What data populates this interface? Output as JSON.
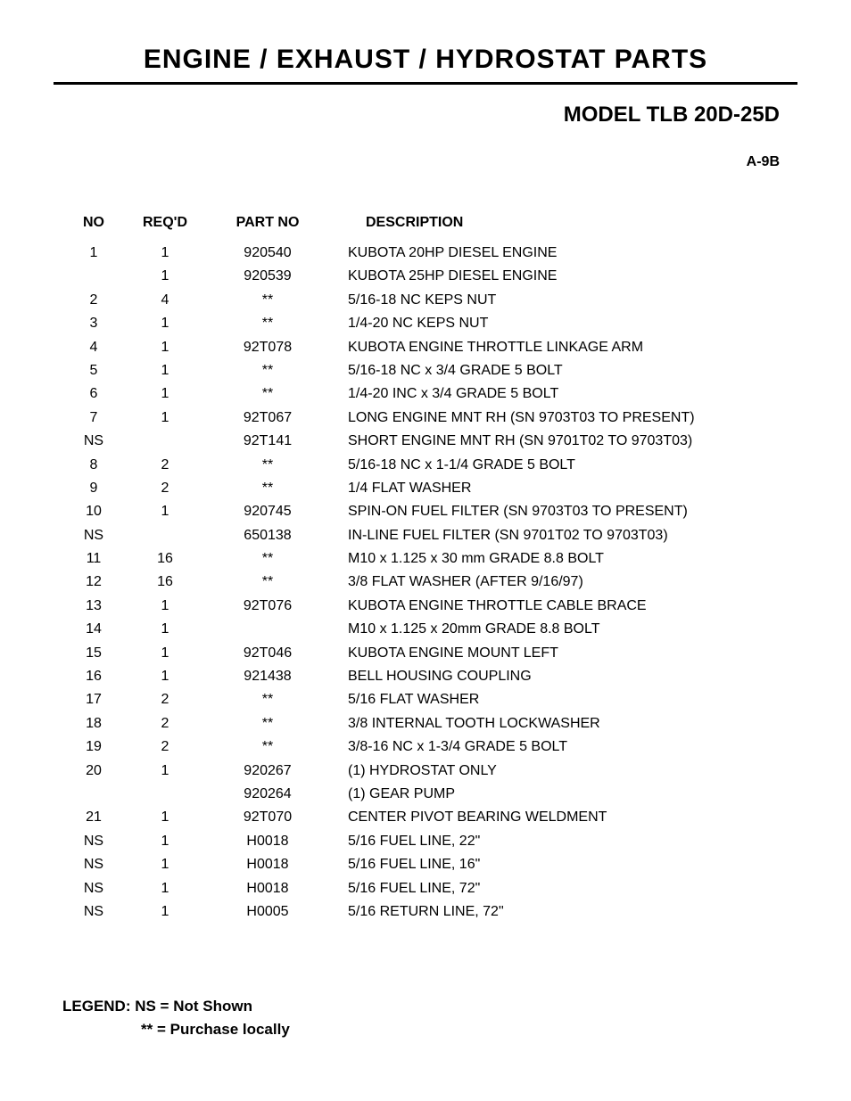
{
  "header": {
    "title": "ENGINE / EXHAUST / HYDROSTAT PARTS",
    "model": "MODEL TLB 20D-25D",
    "page_ref": "A-9B"
  },
  "table": {
    "columns": {
      "no": "NO",
      "reqd": "REQ'D",
      "partno": "PART NO",
      "desc": "DESCRIPTION"
    },
    "rows": [
      {
        "no": "1",
        "reqd": "1",
        "partno": "920540",
        "desc": "KUBOTA 20HP DIESEL ENGINE"
      },
      {
        "no": "",
        "reqd": "1",
        "partno": "920539",
        "desc": "KUBOTA 25HP DIESEL ENGINE"
      },
      {
        "no": "2",
        "reqd": "4",
        "partno": "**",
        "desc": "5/16-18 NC KEPS NUT"
      },
      {
        "no": "3",
        "reqd": "1",
        "partno": "**",
        "desc": "1/4-20 NC KEPS NUT"
      },
      {
        "no": "4",
        "reqd": "1",
        "partno": "92T078",
        "desc": "KUBOTA ENGINE THROTTLE LINKAGE ARM"
      },
      {
        "no": "5",
        "reqd": "1",
        "partno": "**",
        "desc": "5/16-18 NC x 3/4 GRADE 5 BOLT"
      },
      {
        "no": "6",
        "reqd": "1",
        "partno": "**",
        "desc": "1/4-20 INC x 3/4 GRADE 5 BOLT"
      },
      {
        "no": "7",
        "reqd": "1",
        "partno": "92T067",
        "desc": "LONG ENGINE MNT RH (SN 9703T03 TO PRESENT)"
      },
      {
        "no": "NS",
        "reqd": "",
        "partno": "92T141",
        "desc": "SHORT ENGINE MNT RH (SN 9701T02 TO 9703T03)"
      },
      {
        "no": "8",
        "reqd": "2",
        "partno": "**",
        "desc": "5/16-18 NC x 1-1/4 GRADE 5 BOLT"
      },
      {
        "no": "9",
        "reqd": "2",
        "partno": "**",
        "desc": "1/4 FLAT WASHER"
      },
      {
        "no": "10",
        "reqd": "1",
        "partno": "920745",
        "desc": "SPIN-ON FUEL FILTER (SN 9703T03 TO PRESENT)"
      },
      {
        "no": "NS",
        "reqd": "",
        "partno": "650138",
        "desc": "IN-LINE FUEL FILTER (SN 9701T02 TO 9703T03)"
      },
      {
        "no": "11",
        "reqd": "16",
        "partno": "**",
        "desc": "M10 x 1.125 x 30 mm GRADE 8.8 BOLT"
      },
      {
        "no": "12",
        "reqd": "16",
        "partno": "**",
        "desc": "3/8 FLAT WASHER (AFTER 9/16/97)"
      },
      {
        "no": "13",
        "reqd": "1",
        "partno": "92T076",
        "desc": "KUBOTA ENGINE THROTTLE CABLE BRACE"
      },
      {
        "no": "14",
        "reqd": "1",
        "partno": "",
        "desc": "M10 x 1.125 x 20mm GRADE 8.8 BOLT"
      },
      {
        "no": "15",
        "reqd": "1",
        "partno": "92T046",
        "desc": "KUBOTA ENGINE MOUNT LEFT"
      },
      {
        "no": "16",
        "reqd": "1",
        "partno": "921438",
        "desc": "BELL HOUSING COUPLING"
      },
      {
        "no": "17",
        "reqd": "2",
        "partno": "**",
        "desc": "5/16 FLAT WASHER"
      },
      {
        "no": "18",
        "reqd": "2",
        "partno": "**",
        "desc": "3/8 INTERNAL TOOTH LOCKWASHER"
      },
      {
        "no": "19",
        "reqd": "2",
        "partno": "**",
        "desc": "3/8-16 NC x 1-3/4 GRADE 5 BOLT"
      },
      {
        "no": "20",
        "reqd": "1",
        "partno": "920267",
        "desc": "(1) HYDROSTAT ONLY"
      },
      {
        "no": "",
        "reqd": "",
        "partno": "920264",
        "desc": "(1) GEAR PUMP"
      },
      {
        "no": "21",
        "reqd": "1",
        "partno": "92T070",
        "desc": "CENTER PIVOT BEARING WELDMENT"
      },
      {
        "no": "NS",
        "reqd": "1",
        "partno": "H0018",
        "desc": "5/16 FUEL LINE, 22\""
      },
      {
        "no": "NS",
        "reqd": "1",
        "partno": "H0018",
        "desc": "5/16 FUEL LINE, 16\""
      },
      {
        "no": "NS",
        "reqd": "1",
        "partno": "H0018",
        "desc": "5/16 FUEL LINE, 72\""
      },
      {
        "no": "NS",
        "reqd": "1",
        "partno": "H0005",
        "desc": "5/16 RETURN LINE, 72\""
      }
    ]
  },
  "legend": {
    "line1": "LEGEND: NS = Not Shown",
    "line2": "** = Purchase locally"
  }
}
